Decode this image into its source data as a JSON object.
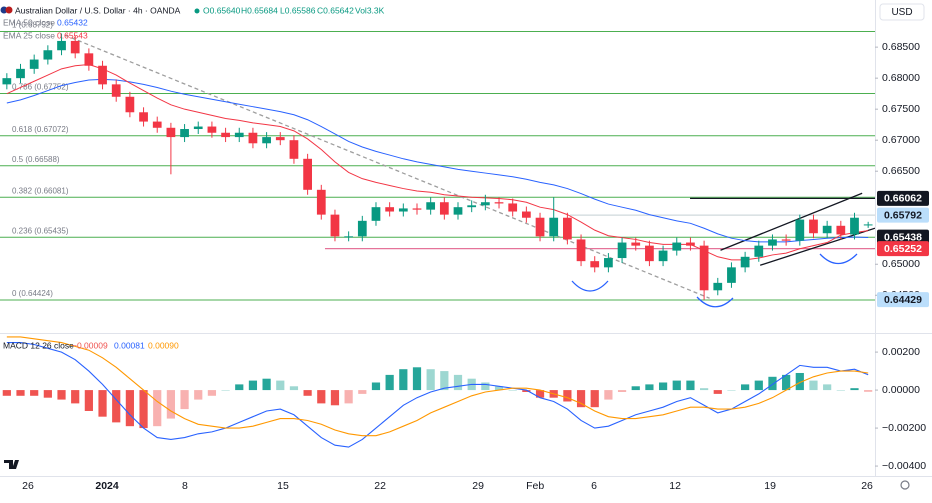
{
  "chart_data": [
    {
      "type": "candlestick",
      "title": "Australian Dollar / U.S. Dollar · 4h · OANDA",
      "ohlc": [
        "O0.65640",
        "H0.65684",
        "L0.65586",
        "C0.65642"
      ],
      "volume": "Vol3.3K",
      "currency": "USD",
      "x": [
        0,
        1,
        2,
        3,
        4,
        5,
        6,
        7,
        8,
        9,
        10,
        11,
        12,
        13,
        14,
        15,
        16,
        17,
        18,
        19,
        20,
        21,
        22,
        23,
        24,
        25,
        26,
        27,
        28,
        29,
        30,
        31,
        32,
        33,
        34,
        35,
        36,
        37,
        38,
        39,
        40,
        41,
        42,
        43,
        44,
        45,
        46,
        47,
        48,
        49,
        50,
        51,
        52,
        53,
        54,
        55,
        56,
        57,
        58,
        59,
        60,
        61,
        62,
        63
      ],
      "open": [
        0.679,
        0.68,
        0.6815,
        0.683,
        0.6845,
        0.686,
        0.684,
        0.682,
        0.679,
        0.677,
        0.6745,
        0.673,
        0.672,
        0.6705,
        0.6718,
        0.6722,
        0.6712,
        0.6705,
        0.6712,
        0.6695,
        0.6705,
        0.67,
        0.667,
        0.662,
        0.658,
        0.6545,
        0.6545,
        0.657,
        0.6592,
        0.6585,
        0.659,
        0.6588,
        0.66,
        0.658,
        0.6592,
        0.6595,
        0.66,
        0.6598,
        0.6585,
        0.6575,
        0.6545,
        0.6575,
        0.654,
        0.6505,
        0.6495,
        0.651,
        0.6535,
        0.653,
        0.6505,
        0.6522,
        0.6535,
        0.653,
        0.6458,
        0.647,
        0.6495,
        0.6512,
        0.653,
        0.654,
        0.6538,
        0.6572,
        0.655,
        0.6562,
        0.6548,
        0.6564
      ],
      "high": [
        0.6808,
        0.6823,
        0.6838,
        0.6853,
        0.6872,
        0.6868,
        0.6848,
        0.6828,
        0.6798,
        0.6778,
        0.6753,
        0.6738,
        0.6728,
        0.6726,
        0.673,
        0.673,
        0.672,
        0.672,
        0.672,
        0.6713,
        0.6713,
        0.6708,
        0.6678,
        0.6628,
        0.6588,
        0.6553,
        0.6578,
        0.66,
        0.66,
        0.6598,
        0.6598,
        0.6608,
        0.6608,
        0.66,
        0.6603,
        0.6612,
        0.6608,
        0.6606,
        0.6593,
        0.6583,
        0.6608,
        0.6583,
        0.6548,
        0.6513,
        0.6518,
        0.6543,
        0.6543,
        0.6538,
        0.653,
        0.6543,
        0.6543,
        0.6538,
        0.6478,
        0.6503,
        0.652,
        0.6538,
        0.6548,
        0.6548,
        0.658,
        0.658,
        0.657,
        0.657,
        0.6583,
        0.65684
      ],
      "low": [
        0.6782,
        0.6792,
        0.6807,
        0.6822,
        0.6837,
        0.6832,
        0.6812,
        0.6782,
        0.6762,
        0.6737,
        0.6722,
        0.6712,
        0.6645,
        0.6697,
        0.671,
        0.6704,
        0.6697,
        0.6697,
        0.6687,
        0.6687,
        0.6692,
        0.6662,
        0.6612,
        0.6572,
        0.6537,
        0.6537,
        0.6537,
        0.6562,
        0.6577,
        0.6577,
        0.658,
        0.658,
        0.6572,
        0.6572,
        0.6584,
        0.6587,
        0.659,
        0.6577,
        0.6567,
        0.6537,
        0.6537,
        0.6532,
        0.6497,
        0.6487,
        0.6487,
        0.6502,
        0.6522,
        0.6497,
        0.6497,
        0.6514,
        0.6522,
        0.6443,
        0.645,
        0.6462,
        0.6487,
        0.6504,
        0.6522,
        0.653,
        0.653,
        0.6542,
        0.6542,
        0.654,
        0.654,
        0.65586
      ],
      "close": [
        0.68,
        0.6815,
        0.683,
        0.6845,
        0.686,
        0.684,
        0.682,
        0.679,
        0.677,
        0.6745,
        0.673,
        0.672,
        0.6705,
        0.6718,
        0.6722,
        0.6712,
        0.6705,
        0.6712,
        0.6695,
        0.6705,
        0.67,
        0.667,
        0.662,
        0.658,
        0.6545,
        0.6545,
        0.657,
        0.6592,
        0.6585,
        0.659,
        0.6588,
        0.66,
        0.658,
        0.6592,
        0.6595,
        0.66,
        0.6598,
        0.6585,
        0.6575,
        0.6545,
        0.6575,
        0.654,
        0.6505,
        0.6495,
        0.651,
        0.6535,
        0.653,
        0.6505,
        0.6522,
        0.6535,
        0.653,
        0.6458,
        0.647,
        0.6495,
        0.6512,
        0.653,
        0.654,
        0.6538,
        0.6572,
        0.655,
        0.6562,
        0.6548,
        0.6575,
        0.65642
      ],
      "up_color": "#089981",
      "down_color": "#f23645",
      "series": [
        {
          "name": "EMA 50 close",
          "color": "#2962ff",
          "value_label": "0.65432",
          "values": [
            0.676,
            0.6765,
            0.6772,
            0.678,
            0.6788,
            0.6793,
            0.6797,
            0.6798,
            0.6797,
            0.6794,
            0.679,
            0.6785,
            0.6779,
            0.6774,
            0.677,
            0.6766,
            0.6762,
            0.6758,
            0.6754,
            0.675,
            0.6746,
            0.6741,
            0.6733,
            0.6722,
            0.671,
            0.6698,
            0.6689,
            0.6682,
            0.6676,
            0.667,
            0.6665,
            0.6661,
            0.6657,
            0.6653,
            0.665,
            0.6647,
            0.6644,
            0.6641,
            0.6637,
            0.6632,
            0.6628,
            0.6622,
            0.6614,
            0.6605,
            0.6597,
            0.6592,
            0.6587,
            0.658,
            0.6575,
            0.657,
            0.6566,
            0.6558,
            0.6549,
            0.6542,
            0.6538,
            0.6536,
            0.6536,
            0.6536,
            0.6538,
            0.654,
            0.6542,
            0.6543,
            0.6544,
            0.65432
          ]
        },
        {
          "name": "EMA 25 close",
          "color": "#f23645",
          "value_label": "0.65543",
          "values": [
            0.6775,
            0.6785,
            0.6795,
            0.6805,
            0.6815,
            0.682,
            0.6822,
            0.6815,
            0.6805,
            0.6792,
            0.678,
            0.6768,
            0.6757,
            0.675,
            0.6745,
            0.674,
            0.6735,
            0.6732,
            0.6728,
            0.6725,
            0.6722,
            0.6715,
            0.6702,
            0.6685,
            0.6665,
            0.6648,
            0.6638,
            0.6632,
            0.6627,
            0.6622,
            0.6618,
            0.6616,
            0.6612,
            0.661,
            0.6608,
            0.6607,
            0.6606,
            0.6604,
            0.66,
            0.6592,
            0.6588,
            0.658,
            0.6568,
            0.6555,
            0.6546,
            0.6543,
            0.654,
            0.6535,
            0.6532,
            0.6532,
            0.6532,
            0.6522,
            0.6512,
            0.6507,
            0.6507,
            0.651,
            0.6515,
            0.6518,
            0.6525,
            0.653,
            0.6535,
            0.6547,
            0.6551,
            0.65543
          ]
        }
      ],
      "xlim": [
        -0.5,
        63.5
      ],
      "ylim": [
        0.6394,
        0.6926
      ],
      "yticks": [
        {
          "value": 0.685,
          "label": "0.68500"
        },
        {
          "value": 0.68,
          "label": "0.68000"
        },
        {
          "value": 0.675,
          "label": "0.67500"
        },
        {
          "value": 0.67,
          "label": "0.67000"
        },
        {
          "value": 0.665,
          "label": "0.66500"
        },
        {
          "value": 0.65,
          "label": "0.65000"
        },
        {
          "value": 0.645,
          "label": "0.64500"
        }
      ],
      "grid": false,
      "fib_color": "#4caf50",
      "fib_levels": [
        {
          "value": 0.68752,
          "label": "1 (0.68752)"
        },
        {
          "value": 0.67752,
          "label": "0.786 (0.67752)"
        },
        {
          "value": 0.67072,
          "label": "0.618 (0.67072)"
        },
        {
          "value": 0.66588,
          "label": "0.5 (0.66588)"
        },
        {
          "value": 0.66081,
          "label": "0.382 (0.66081)"
        },
        {
          "value": 0.65435,
          "label": "0.236 (0.65435)"
        },
        {
          "value": 0.64424,
          "label": "0 (0.64424)"
        }
      ],
      "trend_lines": [
        {
          "x": [
            4.25,
            51.4
          ],
          "y": [
            0.68694,
            0.64452
          ],
          "color": "#9e9e9e",
          "dashed": true
        },
        {
          "x": [
            52.2,
            62.56
          ],
          "y": [
            0.65226,
            0.66145
          ],
          "color": "#131722",
          "dashed": false
        },
        {
          "x": [
            55.1,
            63.5
          ],
          "y": [
            0.64984,
            0.65581
          ],
          "color": "#131722",
          "dashed": false
        }
      ],
      "price_labels": [
        {
          "value": 0.66062,
          "bg": "#131722",
          "fg": "#ffffff",
          "line_from": 49.97,
          "line_color": "#131722"
        },
        {
          "value": 0.65792,
          "bg": "#bbdefb",
          "fg": "#131722",
          "line_from": 41.2,
          "line_color": "#cfd8dc"
        },
        {
          "value": 0.65438,
          "bg": "#131722",
          "fg": "#ffffff"
        },
        {
          "value": 0.65252,
          "bg": "#f23645",
          "fg": "#ffffff",
          "line_from": 23.27,
          "line_color": "#e57399"
        },
        {
          "value": 0.64429,
          "bg": "#bbdefb",
          "fg": "#131722"
        }
      ]
    },
    {
      "type": "macd",
      "title": "MACD 12 26 close",
      "x": [
        0,
        1,
        2,
        3,
        4,
        5,
        6,
        7,
        8,
        9,
        10,
        11,
        12,
        13,
        14,
        15,
        16,
        17,
        18,
        19,
        20,
        21,
        22,
        23,
        24,
        25,
        26,
        27,
        28,
        29,
        30,
        31,
        32,
        33,
        34,
        35,
        36,
        37,
        38,
        39,
        40,
        41,
        42,
        43,
        44,
        45,
        46,
        47,
        48,
        49,
        50,
        51,
        52,
        53,
        54,
        55,
        56,
        57,
        58,
        59,
        60,
        61,
        62,
        63
      ],
      "xlim": [
        -0.5,
        63.5
      ],
      "ylim": [
        -0.00447,
        0.0029
      ],
      "yticks": [
        {
          "value": 0.002,
          "label": "0.00200"
        },
        {
          "value": 0,
          "label": "0.00000"
        },
        {
          "value": -0.002,
          "label": "−0.00200"
        },
        {
          "value": -0.004,
          "label": "−0.00400"
        }
      ],
      "histogram": {
        "up_color": "#26a69a",
        "down_color": "#ef5350",
        "value_label": "−0.00009",
        "values": [
          -0.0003,
          -0.0003,
          -0.0003,
          -0.0004,
          -0.0005,
          -0.0007,
          -0.0011,
          -0.0014,
          -0.0017,
          -0.0019,
          -0.002,
          -0.0019,
          -0.0015,
          -0.001,
          -0.0005,
          -0.0003,
          0.0,
          0.0003,
          0.0005,
          0.0006,
          0.0005,
          0.0002,
          -0.0003,
          -0.0007,
          -0.0008,
          -0.0007,
          -0.0002,
          0.0004,
          0.0008,
          0.0011,
          0.0012,
          0.0011,
          0.001,
          0.0008,
          0.0006,
          0.0004,
          0.0002,
          0.0,
          -0.0001,
          -0.0004,
          -0.0004,
          -0.0006,
          -0.0009,
          -0.0009,
          -0.0005,
          -0.0001,
          0.0002,
          0.0003,
          0.0004,
          0.0005,
          0.0005,
          0.0001,
          -0.0002,
          0.0,
          0.0003,
          0.0005,
          0.0007,
          0.0008,
          0.0009,
          0.0005,
          0.0003,
          0.0,
          0.0001,
          -9e-05
        ]
      },
      "series": [
        {
          "color": "#2962ff",
          "value_label": "0.00081",
          "values": [
            0.0025,
            0.0025,
            0.0024,
            0.0022,
            0.002,
            0.0016,
            0.001,
            0.0003,
            -0.0005,
            -0.0013,
            -0.002,
            -0.0025,
            -0.0026,
            -0.0025,
            -0.0023,
            -0.0022,
            -0.002,
            -0.0017,
            -0.0014,
            -0.0011,
            -0.001,
            -0.0013,
            -0.0019,
            -0.0025,
            -0.0029,
            -0.003,
            -0.0026,
            -0.002,
            -0.0014,
            -0.0008,
            -0.0004,
            -0.0001,
            0.0001,
            0.0002,
            0.0003,
            0.0003,
            0.0002,
            0.0001,
            0.0,
            -0.0004,
            -0.0006,
            -0.001,
            -0.0016,
            -0.002,
            -0.0019,
            -0.0016,
            -0.0013,
            -0.0011,
            -0.0009,
            -0.0006,
            -0.0004,
            -0.0008,
            -0.0012,
            -0.001,
            -0.0006,
            -0.0002,
            0.0003,
            0.0008,
            0.0013,
            0.0012,
            0.0012,
            0.001,
            0.0011,
            0.00081
          ]
        },
        {
          "color": "#ff9800",
          "value_label": "0.00090",
          "values": [
            0.0028,
            0.0028,
            0.0027,
            0.0026,
            0.0025,
            0.0023,
            0.0021,
            0.0017,
            0.0012,
            0.0006,
            0.0,
            -0.0006,
            -0.0011,
            -0.0015,
            -0.0018,
            -0.0019,
            -0.002,
            -0.002,
            -0.0019,
            -0.0017,
            -0.0015,
            -0.0015,
            -0.0016,
            -0.0018,
            -0.0021,
            -0.0023,
            -0.0024,
            -0.0024,
            -0.0022,
            -0.0019,
            -0.0016,
            -0.0012,
            -0.0009,
            -0.0006,
            -0.0003,
            -0.0001,
            0.0,
            0.0001,
            0.0001,
            0.0,
            -0.0002,
            -0.0004,
            -0.0007,
            -0.0011,
            -0.0014,
            -0.0015,
            -0.0015,
            -0.0014,
            -0.0013,
            -0.0011,
            -0.0009,
            -0.0009,
            -0.001,
            -0.001,
            -0.0009,
            -0.0007,
            -0.0004,
            0.0,
            0.0004,
            0.0007,
            0.0009,
            0.001,
            0.001,
            0.0009
          ]
        }
      ],
      "xticks": [
        {
          "value": 1.55,
          "label": "26"
        },
        {
          "value": 7.33,
          "label": "2024",
          "emphasis": true
        },
        {
          "value": 13.03,
          "label": "8"
        },
        {
          "value": 20.2,
          "label": "15"
        },
        {
          "value": 27.3,
          "label": "22"
        },
        {
          "value": 34.47,
          "label": "29"
        },
        {
          "value": 38.64,
          "label": "Feb"
        },
        {
          "value": 42.95,
          "label": "6"
        },
        {
          "value": 48.88,
          "label": "12"
        },
        {
          "value": 55.83,
          "label": "19"
        },
        {
          "value": 62.92,
          "label": "26"
        }
      ]
    }
  ]
}
